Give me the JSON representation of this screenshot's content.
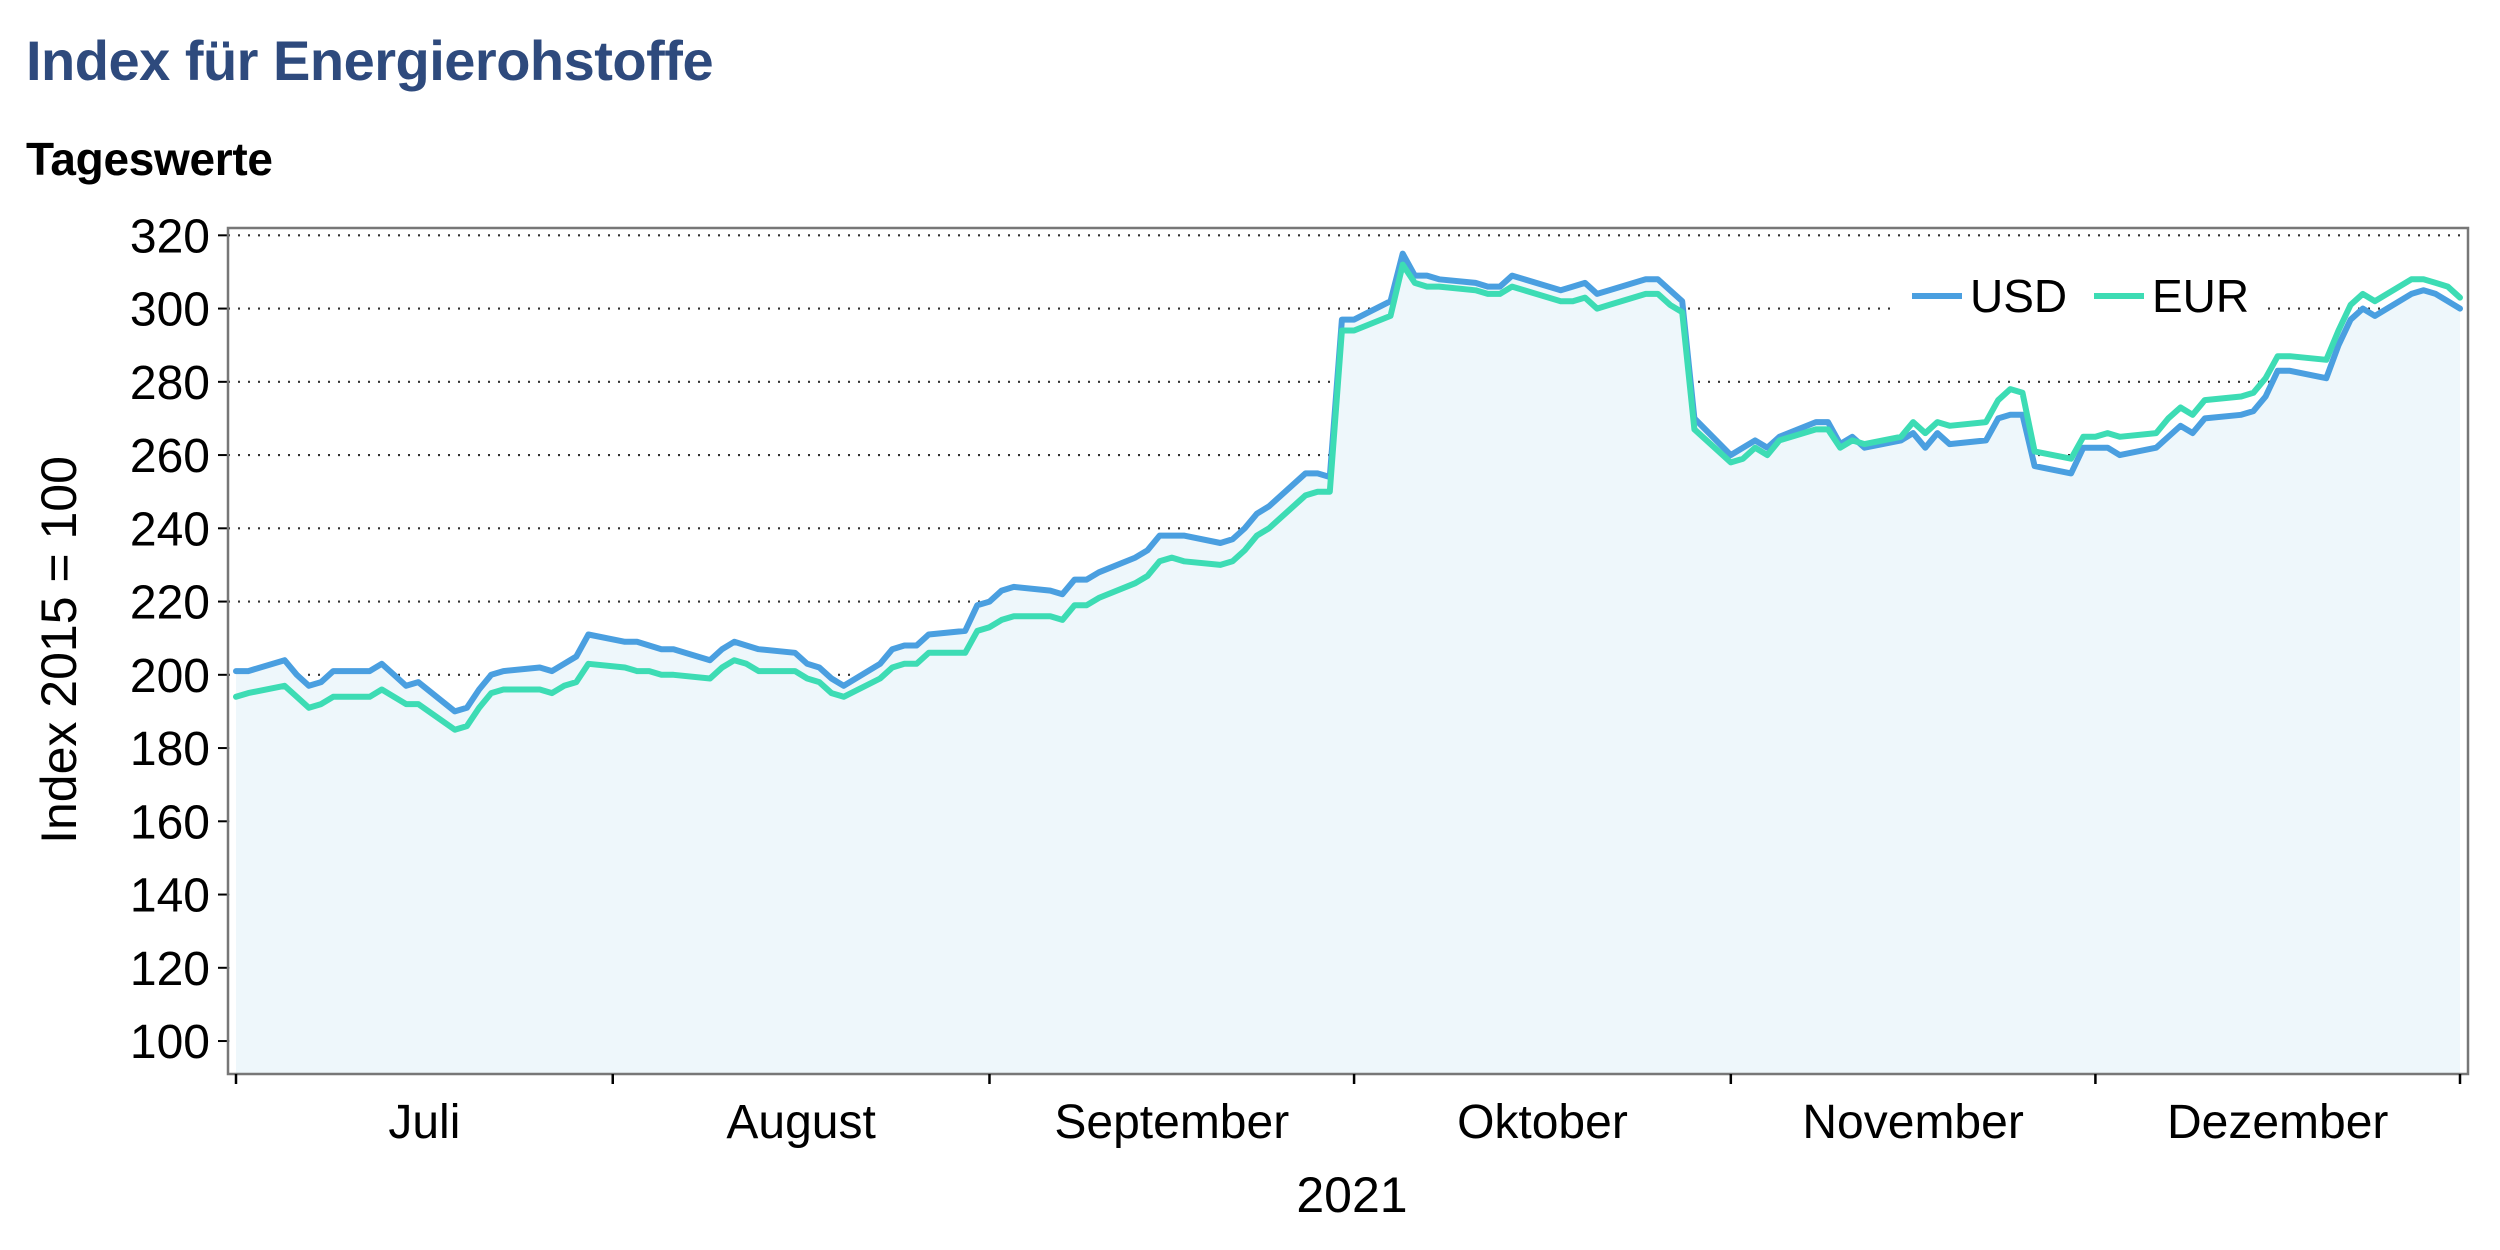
{
  "title": "Index für Energierohstoffe",
  "subtitle": "Tageswerte",
  "colors": {
    "USD": "#4a9fe0",
    "EUR": "#3ddcb4",
    "area": "#eef7fb",
    "title": "#2e4a7d"
  },
  "chart_data": {
    "type": "line",
    "ylabel": "Index 2015 = 100",
    "xlabel": "2021",
    "ylim": [
      91,
      322
    ],
    "yticks": [
      100,
      120,
      140,
      160,
      180,
      200,
      220,
      240,
      260,
      280,
      300,
      320
    ],
    "grid": "horizontal-dotted",
    "legend_position": "top-right",
    "months": [
      "Juli",
      "August",
      "September",
      "Oktober",
      "November",
      "Dezember"
    ],
    "x_range": [
      "2021-07-01",
      "2021-12-31"
    ],
    "series": [
      {
        "name": "USD",
        "points": [
          [
            "2021-07-01",
            201
          ],
          [
            "2021-07-02",
            201
          ],
          [
            "2021-07-05",
            204
          ],
          [
            "2021-07-06",
            200
          ],
          [
            "2021-07-07",
            197
          ],
          [
            "2021-07-08",
            198
          ],
          [
            "2021-07-09",
            201
          ],
          [
            "2021-07-12",
            201
          ],
          [
            "2021-07-13",
            203
          ],
          [
            "2021-07-14",
            200
          ],
          [
            "2021-07-15",
            197
          ],
          [
            "2021-07-16",
            198
          ],
          [
            "2021-07-19",
            190
          ],
          [
            "2021-07-20",
            191
          ],
          [
            "2021-07-21",
            196
          ],
          [
            "2021-07-22",
            200
          ],
          [
            "2021-07-23",
            201
          ],
          [
            "2021-07-26",
            202
          ],
          [
            "2021-07-27",
            201
          ],
          [
            "2021-07-28",
            203
          ],
          [
            "2021-07-29",
            205
          ],
          [
            "2021-07-30",
            211
          ],
          [
            "2021-08-02",
            209
          ],
          [
            "2021-08-03",
            209
          ],
          [
            "2021-08-04",
            208
          ],
          [
            "2021-08-05",
            207
          ],
          [
            "2021-08-06",
            207
          ],
          [
            "2021-08-09",
            204
          ],
          [
            "2021-08-10",
            207
          ],
          [
            "2021-08-11",
            209
          ],
          [
            "2021-08-12",
            208
          ],
          [
            "2021-08-13",
            207
          ],
          [
            "2021-08-16",
            206
          ],
          [
            "2021-08-17",
            203
          ],
          [
            "2021-08-18",
            202
          ],
          [
            "2021-08-19",
            199
          ],
          [
            "2021-08-20",
            197
          ],
          [
            "2021-08-23",
            203
          ],
          [
            "2021-08-24",
            207
          ],
          [
            "2021-08-25",
            208
          ],
          [
            "2021-08-26",
            208
          ],
          [
            "2021-08-27",
            211
          ],
          [
            "2021-08-30",
            212
          ],
          [
            "2021-08-31",
            219
          ],
          [
            "2021-09-01",
            220
          ],
          [
            "2021-09-02",
            223
          ],
          [
            "2021-09-03",
            224
          ],
          [
            "2021-09-06",
            223
          ],
          [
            "2021-09-07",
            222
          ],
          [
            "2021-09-08",
            226
          ],
          [
            "2021-09-09",
            226
          ],
          [
            "2021-09-10",
            228
          ],
          [
            "2021-09-13",
            232
          ],
          [
            "2021-09-14",
            234
          ],
          [
            "2021-09-15",
            238
          ],
          [
            "2021-09-16",
            238
          ],
          [
            "2021-09-17",
            238
          ],
          [
            "2021-09-20",
            236
          ],
          [
            "2021-09-21",
            237
          ],
          [
            "2021-09-22",
            240
          ],
          [
            "2021-09-23",
            244
          ],
          [
            "2021-09-24",
            246
          ],
          [
            "2021-09-27",
            255
          ],
          [
            "2021-09-28",
            255
          ],
          [
            "2021-09-29",
            254
          ],
          [
            "2021-09-30",
            297
          ],
          [
            "2021-10-01",
            297
          ],
          [
            "2021-10-04",
            302
          ],
          [
            "2021-10-05",
            315
          ],
          [
            "2021-10-06",
            309
          ],
          [
            "2021-10-07",
            309
          ],
          [
            "2021-10-08",
            308
          ],
          [
            "2021-10-11",
            307
          ],
          [
            "2021-10-12",
            306
          ],
          [
            "2021-10-13",
            306
          ],
          [
            "2021-10-14",
            309
          ],
          [
            "2021-10-15",
            308
          ],
          [
            "2021-10-18",
            305
          ],
          [
            "2021-10-19",
            306
          ],
          [
            "2021-10-20",
            307
          ],
          [
            "2021-10-21",
            304
          ],
          [
            "2021-10-22",
            305
          ],
          [
            "2021-10-25",
            308
          ],
          [
            "2021-10-26",
            308
          ],
          [
            "2021-10-27",
            305
          ],
          [
            "2021-10-28",
            302
          ],
          [
            "2021-10-29",
            270
          ],
          [
            "2021-11-01",
            260
          ],
          [
            "2021-11-02",
            262
          ],
          [
            "2021-11-03",
            264
          ],
          [
            "2021-11-04",
            262
          ],
          [
            "2021-11-05",
            265
          ],
          [
            "2021-11-08",
            269
          ],
          [
            "2021-11-09",
            269
          ],
          [
            "2021-11-10",
            263
          ],
          [
            "2021-11-11",
            265
          ],
          [
            "2021-11-12",
            262
          ],
          [
            "2021-11-15",
            264
          ],
          [
            "2021-11-16",
            266
          ],
          [
            "2021-11-17",
            262
          ],
          [
            "2021-11-18",
            266
          ],
          [
            "2021-11-19",
            263
          ],
          [
            "2021-11-22",
            264
          ],
          [
            "2021-11-23",
            270
          ],
          [
            "2021-11-24",
            271
          ],
          [
            "2021-11-25",
            271
          ],
          [
            "2021-11-26",
            257
          ],
          [
            "2021-11-29",
            255
          ],
          [
            "2021-11-30",
            262
          ],
          [
            "2021-12-01",
            262
          ],
          [
            "2021-12-02",
            262
          ],
          [
            "2021-12-03",
            260
          ],
          [
            "2021-12-06",
            262
          ],
          [
            "2021-12-07",
            265
          ],
          [
            "2021-12-08",
            268
          ],
          [
            "2021-12-09",
            266
          ],
          [
            "2021-12-10",
            270
          ],
          [
            "2021-12-13",
            271
          ],
          [
            "2021-12-14",
            272
          ],
          [
            "2021-12-15",
            276
          ],
          [
            "2021-12-16",
            283
          ],
          [
            "2021-12-17",
            283
          ],
          [
            "2021-12-20",
            281
          ],
          [
            "2021-12-21",
            290
          ],
          [
            "2021-12-22",
            297
          ],
          [
            "2021-12-23",
            300
          ],
          [
            "2021-12-24",
            298
          ],
          [
            "2021-12-27",
            304
          ],
          [
            "2021-12-28",
            305
          ],
          [
            "2021-12-29",
            304
          ],
          [
            "2021-12-30",
            302
          ],
          [
            "2021-12-31",
            300
          ]
        ]
      },
      {
        "name": "EUR",
        "points": [
          [
            "2021-07-01",
            194
          ],
          [
            "2021-07-02",
            195
          ],
          [
            "2021-07-05",
            197
          ],
          [
            "2021-07-06",
            194
          ],
          [
            "2021-07-07",
            191
          ],
          [
            "2021-07-08",
            192
          ],
          [
            "2021-07-09",
            194
          ],
          [
            "2021-07-12",
            194
          ],
          [
            "2021-07-13",
            196
          ],
          [
            "2021-07-14",
            194
          ],
          [
            "2021-07-15",
            192
          ],
          [
            "2021-07-16",
            192
          ],
          [
            "2021-07-19",
            185
          ],
          [
            "2021-07-20",
            186
          ],
          [
            "2021-07-21",
            191
          ],
          [
            "2021-07-22",
            195
          ],
          [
            "2021-07-23",
            196
          ],
          [
            "2021-07-26",
            196
          ],
          [
            "2021-07-27",
            195
          ],
          [
            "2021-07-28",
            197
          ],
          [
            "2021-07-29",
            198
          ],
          [
            "2021-07-30",
            203
          ],
          [
            "2021-08-02",
            202
          ],
          [
            "2021-08-03",
            201
          ],
          [
            "2021-08-04",
            201
          ],
          [
            "2021-08-05",
            200
          ],
          [
            "2021-08-06",
            200
          ],
          [
            "2021-08-09",
            199
          ],
          [
            "2021-08-10",
            202
          ],
          [
            "2021-08-11",
            204
          ],
          [
            "2021-08-12",
            203
          ],
          [
            "2021-08-13",
            201
          ],
          [
            "2021-08-16",
            201
          ],
          [
            "2021-08-17",
            199
          ],
          [
            "2021-08-18",
            198
          ],
          [
            "2021-08-19",
            195
          ],
          [
            "2021-08-20",
            194
          ],
          [
            "2021-08-23",
            199
          ],
          [
            "2021-08-24",
            202
          ],
          [
            "2021-08-25",
            203
          ],
          [
            "2021-08-26",
            203
          ],
          [
            "2021-08-27",
            206
          ],
          [
            "2021-08-30",
            206
          ],
          [
            "2021-08-31",
            212
          ],
          [
            "2021-09-01",
            213
          ],
          [
            "2021-09-02",
            215
          ],
          [
            "2021-09-03",
            216
          ],
          [
            "2021-09-06",
            216
          ],
          [
            "2021-09-07",
            215
          ],
          [
            "2021-09-08",
            219
          ],
          [
            "2021-09-09",
            219
          ],
          [
            "2021-09-10",
            221
          ],
          [
            "2021-09-13",
            225
          ],
          [
            "2021-09-14",
            227
          ],
          [
            "2021-09-15",
            231
          ],
          [
            "2021-09-16",
            232
          ],
          [
            "2021-09-17",
            231
          ],
          [
            "2021-09-20",
            230
          ],
          [
            "2021-09-21",
            231
          ],
          [
            "2021-09-22",
            234
          ],
          [
            "2021-09-23",
            238
          ],
          [
            "2021-09-24",
            240
          ],
          [
            "2021-09-27",
            249
          ],
          [
            "2021-09-28",
            250
          ],
          [
            "2021-09-29",
            250
          ],
          [
            "2021-09-30",
            294
          ],
          [
            "2021-10-01",
            294
          ],
          [
            "2021-10-04",
            298
          ],
          [
            "2021-10-05",
            312
          ],
          [
            "2021-10-06",
            307
          ],
          [
            "2021-10-07",
            306
          ],
          [
            "2021-10-08",
            306
          ],
          [
            "2021-10-11",
            305
          ],
          [
            "2021-10-12",
            304
          ],
          [
            "2021-10-13",
            304
          ],
          [
            "2021-10-14",
            306
          ],
          [
            "2021-10-15",
            305
          ],
          [
            "2021-10-18",
            302
          ],
          [
            "2021-10-19",
            302
          ],
          [
            "2021-10-20",
            303
          ],
          [
            "2021-10-21",
            300
          ],
          [
            "2021-10-22",
            301
          ],
          [
            "2021-10-25",
            304
          ],
          [
            "2021-10-26",
            304
          ],
          [
            "2021-10-27",
            301
          ],
          [
            "2021-10-28",
            299
          ],
          [
            "2021-10-29",
            267
          ],
          [
            "2021-11-01",
            258
          ],
          [
            "2021-11-02",
            259
          ],
          [
            "2021-11-03",
            262
          ],
          [
            "2021-11-04",
            260
          ],
          [
            "2021-11-05",
            264
          ],
          [
            "2021-11-08",
            267
          ],
          [
            "2021-11-09",
            267
          ],
          [
            "2021-11-10",
            262
          ],
          [
            "2021-11-11",
            264
          ],
          [
            "2021-11-12",
            263
          ],
          [
            "2021-11-15",
            265
          ],
          [
            "2021-11-16",
            269
          ],
          [
            "2021-11-17",
            266
          ],
          [
            "2021-11-18",
            269
          ],
          [
            "2021-11-19",
            268
          ],
          [
            "2021-11-22",
            269
          ],
          [
            "2021-11-23",
            275
          ],
          [
            "2021-11-24",
            278
          ],
          [
            "2021-11-25",
            277
          ],
          [
            "2021-11-26",
            261
          ],
          [
            "2021-11-29",
            259
          ],
          [
            "2021-11-30",
            265
          ],
          [
            "2021-12-01",
            265
          ],
          [
            "2021-12-02",
            266
          ],
          [
            "2021-12-03",
            265
          ],
          [
            "2021-12-06",
            266
          ],
          [
            "2021-12-07",
            270
          ],
          [
            "2021-12-08",
            273
          ],
          [
            "2021-12-09",
            271
          ],
          [
            "2021-12-10",
            275
          ],
          [
            "2021-12-13",
            276
          ],
          [
            "2021-12-14",
            277
          ],
          [
            "2021-12-15",
            281
          ],
          [
            "2021-12-16",
            287
          ],
          [
            "2021-12-17",
            287
          ],
          [
            "2021-12-20",
            286
          ],
          [
            "2021-12-21",
            294
          ],
          [
            "2021-12-22",
            301
          ],
          [
            "2021-12-23",
            304
          ],
          [
            "2021-12-24",
            302
          ],
          [
            "2021-12-27",
            308
          ],
          [
            "2021-12-28",
            308
          ],
          [
            "2021-12-29",
            307
          ],
          [
            "2021-12-30",
            306
          ],
          [
            "2021-12-31",
            303
          ]
        ]
      }
    ]
  }
}
